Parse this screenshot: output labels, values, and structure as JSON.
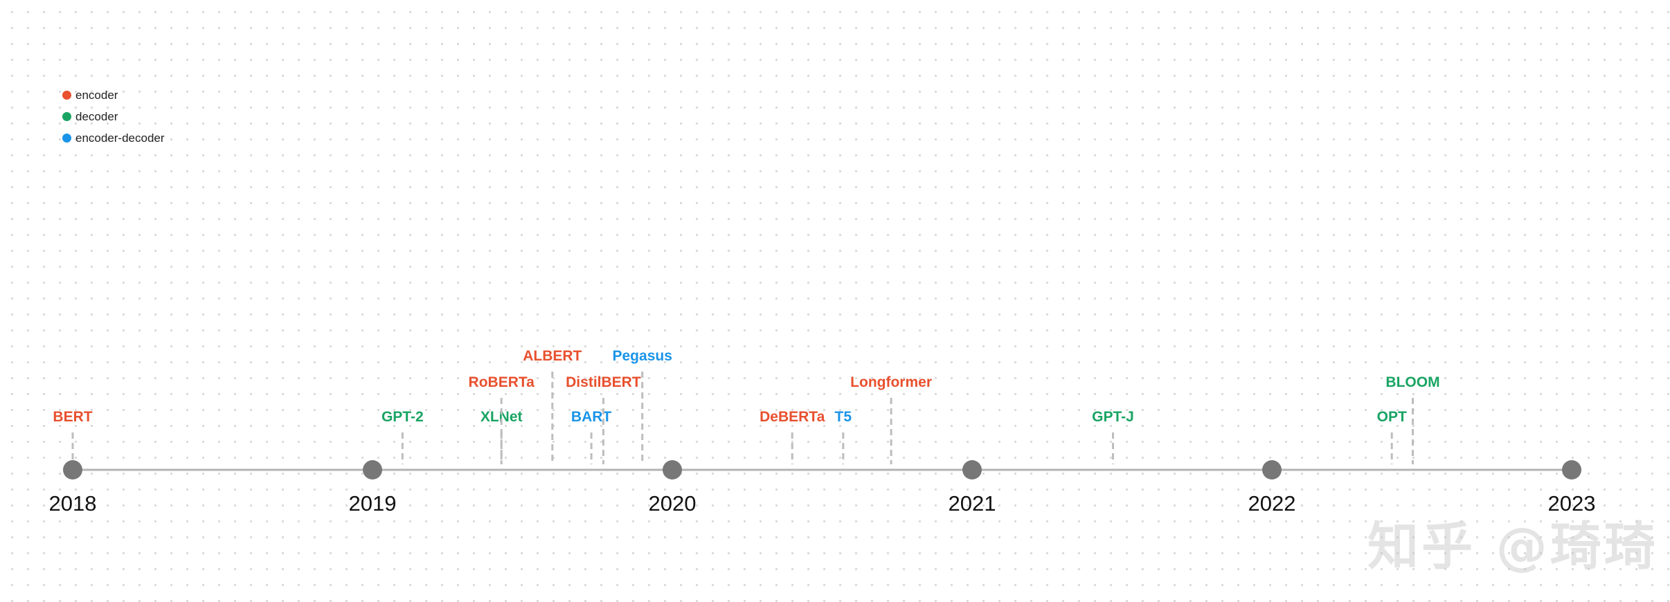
{
  "legend": [
    {
      "label": "encoder",
      "color": "#e8502e"
    },
    {
      "label": "decoder",
      "color": "#19a463"
    },
    {
      "label": "encoder-decoder",
      "color": "#1a94e8"
    }
  ],
  "colors": {
    "encoder": "#e8502e",
    "decoder": "#19a463",
    "encoder-decoder": "#1a94e8",
    "axis": "#b3b3b3",
    "marker": "#777777",
    "stem": "#bdbdbd"
  },
  "years": [
    "2018",
    "2019",
    "2020",
    "2021",
    "2022",
    "2023"
  ],
  "models": [
    {
      "name": "BERT",
      "type": "encoder",
      "date": 2018.0
    },
    {
      "name": "GPT-2",
      "type": "decoder",
      "date": 2019.1
    },
    {
      "name": "XLNet",
      "type": "decoder",
      "date": 2019.43
    },
    {
      "name": "RoBERTa",
      "type": "encoder",
      "date": 2019.43
    },
    {
      "name": "ALBERT",
      "type": "encoder",
      "date": 2019.6
    },
    {
      "name": "BART",
      "type": "encoder-decoder",
      "date": 2019.73
    },
    {
      "name": "DistilBERT",
      "type": "encoder",
      "date": 2019.77
    },
    {
      "name": "Pegasus",
      "type": "encoder-decoder",
      "date": 2019.9
    },
    {
      "name": "DeBERTa",
      "type": "encoder",
      "date": 2020.4
    },
    {
      "name": "T5",
      "type": "encoder-decoder",
      "date": 2020.57
    },
    {
      "name": "Longformer",
      "type": "encoder",
      "date": 2020.73
    },
    {
      "name": "GPT-J",
      "type": "decoder",
      "date": 2021.47
    },
    {
      "name": "OPT",
      "type": "decoder",
      "date": 2022.4
    },
    {
      "name": "BLOOM",
      "type": "decoder",
      "date": 2022.47
    }
  ],
  "watermark": "知乎 @琦琦"
}
